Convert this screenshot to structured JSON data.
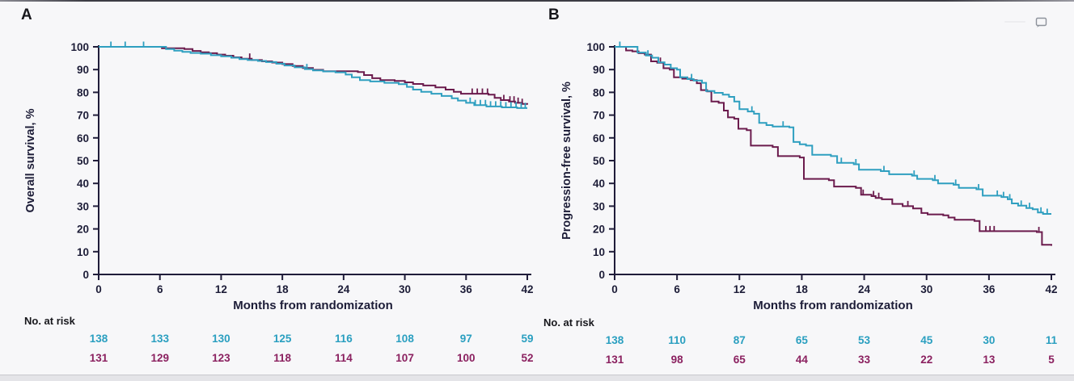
{
  "figure": {
    "background": "#f7f7f9",
    "text_color": "#1d1d38",
    "axis_color": "#201d3a",
    "comment_icon_color": "#8d929b"
  },
  "chart_data": [
    {
      "type": "line",
      "subtype": "kaplan-meier-step",
      "panel_label": "A",
      "ylabel": "Overall survival, %",
      "xlabel": "Months from randomization",
      "no_at_risk_label": "No. at risk",
      "xlim": [
        0,
        42
      ],
      "ylim": [
        0,
        100
      ],
      "xticks": [
        0,
        6,
        12,
        18,
        24,
        30,
        36,
        42
      ],
      "yticks": [
        0,
        10,
        20,
        30,
        40,
        50,
        60,
        70,
        80,
        90,
        100
      ],
      "grid": false,
      "legend": "none",
      "series": [
        {
          "name": "arm-maroon",
          "color": "#6b1b4d",
          "risk_color": "#8b2160",
          "at_risk": [
            131,
            129,
            123,
            118,
            114,
            107,
            100,
            52
          ],
          "steps": [
            [
              0,
              100
            ],
            [
              5.6,
              100
            ],
            [
              6.2,
              99.4
            ],
            [
              8.4,
              99
            ],
            [
              9.2,
              98.2
            ],
            [
              10,
              97.6
            ],
            [
              10.8,
              97.2
            ],
            [
              11.6,
              96.6
            ],
            [
              12.4,
              96.1
            ],
            [
              13.2,
              95.4
            ],
            [
              14,
              94.8
            ],
            [
              15,
              94.2
            ],
            [
              16,
              93.6
            ],
            [
              17,
              93.1
            ],
            [
              18,
              92.4
            ],
            [
              19,
              91.6
            ],
            [
              20,
              90.7
            ],
            [
              21,
              89.9
            ],
            [
              22,
              89.3
            ],
            [
              25.4,
              88.9
            ],
            [
              26,
              87.6
            ],
            [
              26.8,
              86.2
            ],
            [
              27.6,
              85.4
            ],
            [
              29,
              85
            ],
            [
              30,
              84.4
            ],
            [
              30.8,
              83.7
            ],
            [
              31.8,
              83
            ],
            [
              33,
              82.2
            ],
            [
              34,
              81.2
            ],
            [
              34.8,
              80.2
            ],
            [
              35.5,
              79.4
            ],
            [
              38.2,
              79
            ],
            [
              38.8,
              77.6
            ],
            [
              39.4,
              76.6
            ],
            [
              40.2,
              76
            ],
            [
              40.8,
              75.4
            ],
            [
              41.5,
              74.9
            ],
            [
              42,
              74.6
            ]
          ],
          "censors": [
            14.8,
            36.6,
            37.1,
            37.6,
            38.1,
            39.7,
            40.3,
            40.7,
            41.1,
            41.5
          ]
        },
        {
          "name": "arm-teal",
          "color": "#2f9fc0",
          "risk_color": "#2a9fc0",
          "at_risk": [
            138,
            133,
            130,
            125,
            116,
            108,
            97,
            59
          ],
          "steps": [
            [
              0,
              100
            ],
            [
              6,
              100
            ],
            [
              6.6,
              99
            ],
            [
              7.4,
              98.3
            ],
            [
              8.2,
              97.8
            ],
            [
              9,
              97.3
            ],
            [
              10,
              97
            ],
            [
              11,
              96.3
            ],
            [
              12,
              95.8
            ],
            [
              13,
              95.2
            ],
            [
              13.8,
              94.6
            ],
            [
              14.6,
              94.2
            ],
            [
              15.6,
              93.8
            ],
            [
              16.4,
              93.3
            ],
            [
              17.4,
              92.6
            ],
            [
              18.2,
              91.8
            ],
            [
              19.2,
              91
            ],
            [
              20.2,
              90.2
            ],
            [
              21,
              89.6
            ],
            [
              22,
              89.2
            ],
            [
              23.2,
              88.8
            ],
            [
              24.2,
              87.8
            ],
            [
              24.8,
              86.6
            ],
            [
              25.6,
              85.4
            ],
            [
              26.6,
              84.8
            ],
            [
              28,
              84.2
            ],
            [
              29.4,
              83.6
            ],
            [
              30.2,
              82.4
            ],
            [
              30.8,
              81.2
            ],
            [
              31.6,
              80.2
            ],
            [
              32.6,
              79.4
            ],
            [
              33.6,
              78.4
            ],
            [
              34.6,
              77.4
            ],
            [
              35.2,
              76.4
            ],
            [
              36,
              75.4
            ],
            [
              36.8,
              74.4
            ],
            [
              38,
              73.8
            ],
            [
              39.5,
              73.4
            ],
            [
              41,
              73.1
            ],
            [
              42,
              73.1
            ]
          ],
          "censors": [
            1.2,
            2.6,
            4.4,
            20.4,
            36.4,
            36.9,
            37.4,
            37.9,
            38.4,
            38.9,
            39.4,
            39.9,
            40.4,
            40.9,
            41.4,
            41.8
          ]
        }
      ]
    },
    {
      "type": "line",
      "subtype": "kaplan-meier-step",
      "panel_label": "B",
      "ylabel": "Progression-free survival, %",
      "xlabel": "Months from randomization",
      "no_at_risk_label": "No. at risk",
      "xlim": [
        0,
        42
      ],
      "ylim": [
        0,
        100
      ],
      "xticks": [
        0,
        6,
        12,
        18,
        24,
        30,
        36,
        42
      ],
      "yticks": [
        0,
        10,
        20,
        30,
        40,
        50,
        60,
        70,
        80,
        90,
        100
      ],
      "grid": false,
      "legend": "none",
      "series": [
        {
          "name": "arm-maroon",
          "color": "#6b1b4d",
          "risk_color": "#8b2160",
          "at_risk": [
            131,
            98,
            65,
            44,
            33,
            22,
            13,
            5
          ],
          "steps": [
            [
              0,
              100
            ],
            [
              0.9,
              100
            ],
            [
              1.1,
              98.4
            ],
            [
              1.7,
              98
            ],
            [
              2.3,
              97.2
            ],
            [
              2.9,
              96.6
            ],
            [
              3.5,
              93.6
            ],
            [
              4.1,
              93
            ],
            [
              4.7,
              90.6
            ],
            [
              5.3,
              90
            ],
            [
              5.7,
              86.6
            ],
            [
              6.5,
              86
            ],
            [
              7.3,
              85.4
            ],
            [
              7.9,
              84
            ],
            [
              8.3,
              81
            ],
            [
              8.9,
              80.4
            ],
            [
              9.3,
              76
            ],
            [
              10,
              75.4
            ],
            [
              10.5,
              72
            ],
            [
              10.9,
              69
            ],
            [
              11.5,
              68.4
            ],
            [
              11.9,
              64
            ],
            [
              12.7,
              63.4
            ],
            [
              13.1,
              56.6
            ],
            [
              15.2,
              56
            ],
            [
              15.7,
              52
            ],
            [
              17.8,
              51.4
            ],
            [
              18.2,
              42
            ],
            [
              20.6,
              41.4
            ],
            [
              21.1,
              38.6
            ],
            [
              23.2,
              38
            ],
            [
              23.7,
              35
            ],
            [
              24.7,
              34.4
            ],
            [
              25.1,
              33.6
            ],
            [
              25.7,
              33
            ],
            [
              26.7,
              31
            ],
            [
              27.7,
              30
            ],
            [
              28.7,
              29
            ],
            [
              29.5,
              27
            ],
            [
              30.1,
              26.4
            ],
            [
              31.6,
              26
            ],
            [
              32.1,
              25
            ],
            [
              32.7,
              24
            ],
            [
              34.6,
              23.5
            ],
            [
              35.1,
              19
            ],
            [
              40.6,
              18.6
            ],
            [
              41.1,
              13
            ],
            [
              42,
              12.6
            ]
          ],
          "censors": [
            4.4,
            23.9,
            24.9,
            25.4,
            28.2,
            35.7,
            36.1,
            36.5,
            40.8
          ]
        },
        {
          "name": "arm-teal",
          "color": "#2f9fc0",
          "risk_color": "#2a9fc0",
          "at_risk": [
            138,
            110,
            87,
            65,
            53,
            45,
            30,
            11
          ],
          "steps": [
            [
              0,
              100
            ],
            [
              1.8,
              100
            ],
            [
              2.2,
              97.5
            ],
            [
              3,
              96.2
            ],
            [
              3.6,
              95.2
            ],
            [
              4.2,
              93.2
            ],
            [
              4.8,
              92.2
            ],
            [
              5.4,
              90.6
            ],
            [
              6,
              90
            ],
            [
              6.3,
              86.6
            ],
            [
              7,
              85.8
            ],
            [
              7.6,
              85.2
            ],
            [
              8.4,
              84.2
            ],
            [
              8.8,
              80.6
            ],
            [
              9.6,
              79.8
            ],
            [
              10.4,
              79
            ],
            [
              11,
              78
            ],
            [
              11.5,
              76
            ],
            [
              12,
              72.6
            ],
            [
              12.8,
              71.6
            ],
            [
              13.4,
              70.6
            ],
            [
              13.9,
              66.6
            ],
            [
              14.6,
              65.6
            ],
            [
              15.2,
              65
            ],
            [
              16.8,
              64.6
            ],
            [
              17.2,
              58.2
            ],
            [
              17.8,
              57.2
            ],
            [
              18.4,
              56.6
            ],
            [
              19,
              52.6
            ],
            [
              20.8,
              52
            ],
            [
              21.4,
              49
            ],
            [
              23,
              48.4
            ],
            [
              23.5,
              46
            ],
            [
              25.6,
              45.4
            ],
            [
              26.4,
              44
            ],
            [
              28.6,
              43.4
            ],
            [
              29.1,
              42
            ],
            [
              30.6,
              41.4
            ],
            [
              31.1,
              40
            ],
            [
              32.6,
              39.4
            ],
            [
              33.1,
              38
            ],
            [
              34.8,
              37.4
            ],
            [
              35.4,
              34.6
            ],
            [
              37.2,
              34
            ],
            [
              37.8,
              33
            ],
            [
              38.2,
              31.2
            ],
            [
              38.8,
              30.2
            ],
            [
              39.6,
              29.2
            ],
            [
              40.2,
              28.6
            ],
            [
              40.7,
              27.2
            ],
            [
              41.2,
              26.6
            ],
            [
              42,
              26.6
            ]
          ],
          "censors": [
            0.5,
            3.2,
            7.4,
            13.2,
            16.2,
            21.8,
            23.2,
            25.9,
            28.8,
            30.8,
            32.8,
            35,
            36.8,
            37.4,
            38,
            39.1,
            39.9,
            41,
            41.6
          ]
        }
      ]
    }
  ]
}
